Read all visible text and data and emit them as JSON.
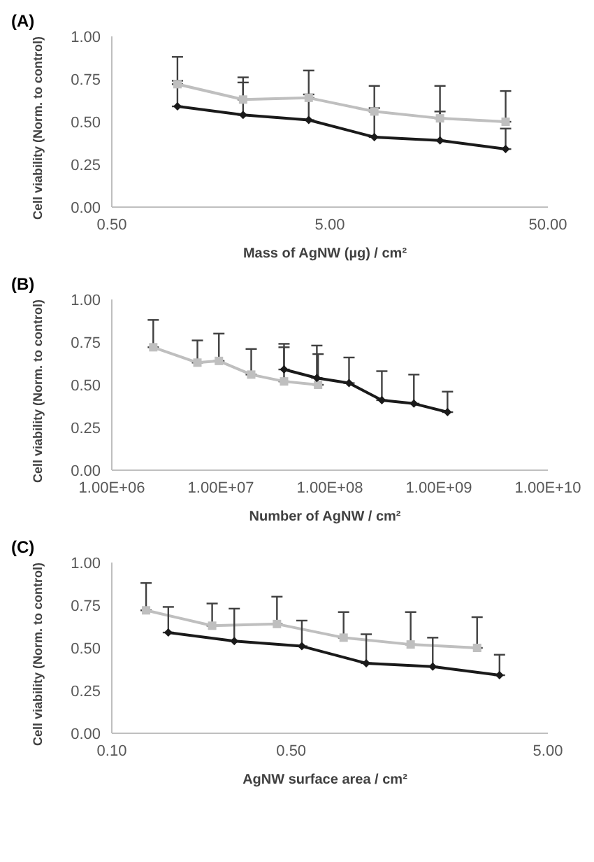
{
  "chart_data": [
    {
      "type": "line",
      "title": "(A)",
      "xlabel": "Mass of AgNW (µg) / cm²",
      "ylabel": "Cell viability (Norm. to control)",
      "log": "x",
      "xlim": [
        0.5,
        50
      ],
      "xticks": [
        {
          "value": 0.5,
          "label": "0.50"
        },
        {
          "value": 5,
          "label": "5.00"
        },
        {
          "value": 50,
          "label": "50.00"
        }
      ],
      "ylim": [
        0,
        1
      ],
      "yticks": [
        {
          "value": 0,
          "label": "0.00"
        },
        {
          "value": 0.25,
          "label": "0.25"
        },
        {
          "value": 0.5,
          "label": "0.50"
        },
        {
          "value": 0.75,
          "label": "0.75"
        },
        {
          "value": 1,
          "label": "1.00"
        }
      ],
      "grid": false,
      "series": [
        {
          "color": "#bfbfbf",
          "marker": "square",
          "x": [
            1,
            2,
            4,
            8,
            16,
            32
          ],
          "values": [
            0.72,
            0.63,
            0.64,
            0.56,
            0.52,
            0.5
          ],
          "errors": [
            [
              0.72,
              0.88
            ],
            [
              0.63,
              0.76
            ],
            [
              0.64,
              0.8
            ],
            [
              0.56,
              0.71
            ],
            [
              0.52,
              0.71
            ],
            [
              0.5,
              0.68
            ]
          ]
        },
        {
          "color": "#1a1a1a",
          "marker": "diamond",
          "x": [
            1,
            2,
            4,
            8,
            16,
            32
          ],
          "values": [
            0.59,
            0.54,
            0.51,
            0.41,
            0.39,
            0.34
          ],
          "errors": [
            [
              0.59,
              0.74
            ],
            [
              0.54,
              0.73
            ],
            [
              0.51,
              0.66
            ],
            [
              0.41,
              0.58
            ],
            [
              0.39,
              0.56
            ],
            [
              0.34,
              0.46
            ]
          ]
        }
      ]
    },
    {
      "type": "line",
      "title": "(B)",
      "xlabel": "Number of AgNW / cm²",
      "ylabel": "Cell viability (Norm. to control)",
      "log": "x",
      "xlim": [
        1000000,
        10000000000
      ],
      "xticks": [
        {
          "value": 1000000,
          "label": "1.00E+06"
        },
        {
          "value": 10000000,
          "label": "1.00E+07"
        },
        {
          "value": 100000000,
          "label": "1.00E+08"
        },
        {
          "value": 1000000000,
          "label": "1.00E+09"
        },
        {
          "value": 10000000000,
          "label": "1.00E+10"
        }
      ],
      "ylim": [
        0,
        1
      ],
      "yticks": [
        {
          "value": 0,
          "label": "0.00"
        },
        {
          "value": 0.25,
          "label": "0.25"
        },
        {
          "value": 0.5,
          "label": "0.50"
        },
        {
          "value": 0.75,
          "label": "0.75"
        },
        {
          "value": 1,
          "label": "1.00"
        }
      ],
      "grid": false,
      "series": [
        {
          "color": "#bfbfbf",
          "marker": "square",
          "x": [
            2400000,
            6100000,
            9600000,
            19000000,
            38000000,
            78000000
          ],
          "values": [
            0.72,
            0.63,
            0.64,
            0.56,
            0.52,
            0.5
          ],
          "errors": [
            [
              0.72,
              0.88
            ],
            [
              0.63,
              0.76
            ],
            [
              0.64,
              0.8
            ],
            [
              0.56,
              0.71
            ],
            [
              0.52,
              0.74
            ],
            [
              0.5,
              0.68
            ]
          ]
        },
        {
          "color": "#1a1a1a",
          "marker": "diamond",
          "x": [
            38000000,
            76000000,
            150000000,
            300000000,
            590000000,
            1200000000
          ],
          "values": [
            0.59,
            0.54,
            0.51,
            0.41,
            0.39,
            0.34
          ],
          "errors": [
            [
              0.59,
              0.72
            ],
            [
              0.54,
              0.73
            ],
            [
              0.51,
              0.66
            ],
            [
              0.41,
              0.58
            ],
            [
              0.39,
              0.56
            ],
            [
              0.34,
              0.46
            ]
          ]
        }
      ]
    },
    {
      "type": "line",
      "title": "(C)",
      "xlabel": "AgNW surface area / cm²",
      "ylabel": "Cell viability (Norm. to control)",
      "log": "x",
      "xlim": [
        0.1,
        5
      ],
      "xticks": [
        {
          "value": 0.1,
          "label": "0.10"
        },
        {
          "value": 0.5,
          "label": "0.50"
        },
        {
          "value": 5,
          "label": "5.00"
        }
      ],
      "ylim": [
        0,
        1
      ],
      "yticks": [
        {
          "value": 0,
          "label": "0.00"
        },
        {
          "value": 0.25,
          "label": "0.25"
        },
        {
          "value": 0.5,
          "label": "0.50"
        },
        {
          "value": 0.75,
          "label": "0.75"
        },
        {
          "value": 1,
          "label": "1.00"
        }
      ],
      "grid": false,
      "series": [
        {
          "color": "#bfbfbf",
          "marker": "square",
          "x": [
            0.136,
            0.246,
            0.44,
            0.8,
            1.46,
            2.65
          ],
          "values": [
            0.72,
            0.63,
            0.64,
            0.56,
            0.52,
            0.5
          ],
          "errors": [
            [
              0.72,
              0.88
            ],
            [
              0.63,
              0.76
            ],
            [
              0.64,
              0.8
            ],
            [
              0.56,
              0.71
            ],
            [
              0.52,
              0.71
            ],
            [
              0.5,
              0.68
            ]
          ]
        },
        {
          "color": "#1a1a1a",
          "marker": "diamond",
          "x": [
            0.166,
            0.3,
            0.55,
            0.98,
            1.78,
            3.24
          ],
          "values": [
            0.59,
            0.54,
            0.51,
            0.41,
            0.39,
            0.34
          ],
          "errors": [
            [
              0.59,
              0.74
            ],
            [
              0.54,
              0.73
            ],
            [
              0.51,
              0.66
            ],
            [
              0.41,
              0.58
            ],
            [
              0.39,
              0.56
            ],
            [
              0.34,
              0.46
            ]
          ]
        }
      ]
    }
  ]
}
